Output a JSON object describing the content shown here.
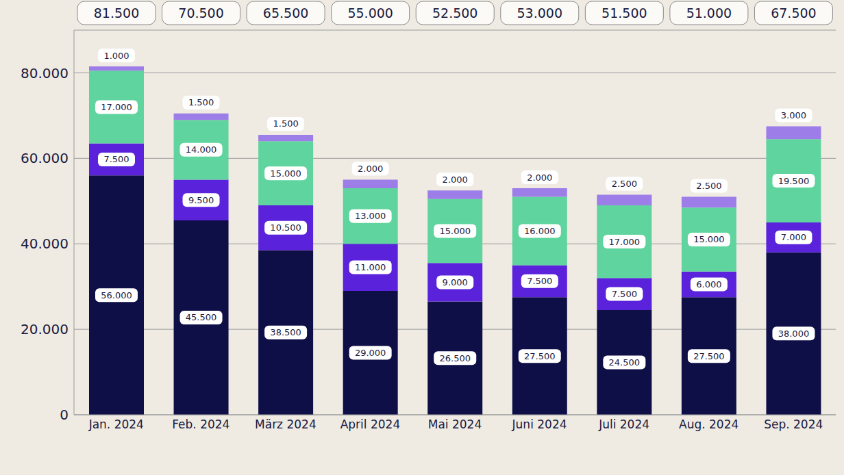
{
  "chart_data": {
    "type": "bar",
    "stacked": true,
    "data_labels": true,
    "grid": true,
    "categories": [
      "Jan. 2024",
      "Feb. 2024",
      "März 2024",
      "April 2024",
      "Mai 2024",
      "Juni 2024",
      "Juli 2024",
      "Aug. 2024",
      "Sep. 2024"
    ],
    "series": [
      {
        "color": "#0f0f47",
        "values": [
          56000,
          45500,
          38500,
          29000,
          26500,
          27500,
          24500,
          27500,
          38000
        ],
        "value_labels": [
          "56.000",
          "45.500",
          "38.500",
          "29.000",
          "26.500",
          "27.500",
          "24.500",
          "27.500",
          "38.000"
        ]
      },
      {
        "color": "#5b22dc",
        "values": [
          7500,
          9500,
          10500,
          11000,
          9000,
          7500,
          7500,
          6000,
          7000
        ],
        "value_labels": [
          "7.500",
          "9.500",
          "10.500",
          "11.000",
          "9.000",
          "7.500",
          "7.500",
          "6.000",
          "7.000"
        ]
      },
      {
        "color": "#5fd49e",
        "values": [
          17000,
          14000,
          15000,
          13000,
          15000,
          16000,
          17000,
          15000,
          19500
        ],
        "value_labels": [
          "17.000",
          "14.000",
          "15.000",
          "13.000",
          "15.000",
          "16.000",
          "17.000",
          "15.000",
          "19.500"
        ]
      },
      {
        "color": "#9d7de8",
        "values": [
          1000,
          1500,
          1500,
          2000,
          2000,
          2000,
          2500,
          2500,
          3000
        ],
        "value_labels": [
          "1.000",
          "1.500",
          "1.500",
          "2.000",
          "2.000",
          "2.000",
          "2.500",
          "2.500",
          "3.000"
        ]
      }
    ],
    "totals": [
      81500,
      70500,
      65500,
      55000,
      52500,
      53000,
      51500,
      51000,
      67500
    ],
    "total_labels": [
      "81.500",
      "70.500",
      "65.500",
      "55.000",
      "52.500",
      "53.000",
      "51.500",
      "51.000",
      "67.500"
    ],
    "ylim": [
      0,
      90000
    ],
    "yticks": [
      0,
      {
        "value": 20000,
        "label": "20.000"
      },
      {
        "value": 40000,
        "label": "40.000"
      },
      {
        "value": 60000,
        "label": "60.000"
      },
      {
        "value": 80000,
        "label": "80.000"
      }
    ]
  }
}
